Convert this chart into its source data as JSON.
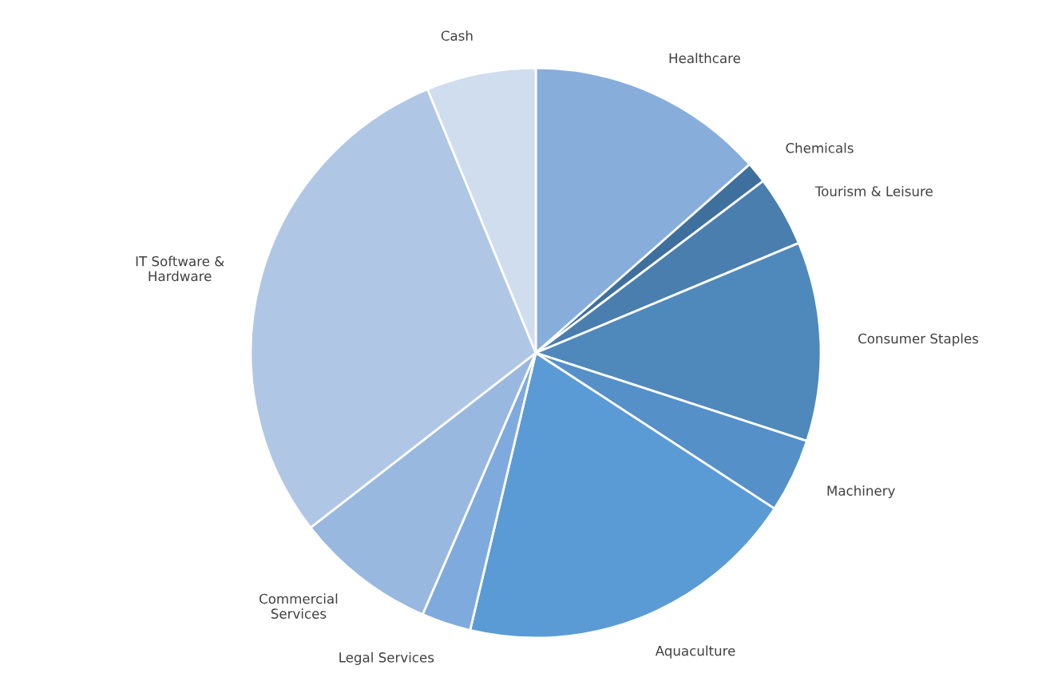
{
  "chart_data": {
    "type": "pie",
    "categories": [
      "Healthcare",
      "Chemicals",
      "Tourism & Leisure",
      "Consumer Staples",
      "Machinery",
      "Aquaculture",
      "Legal Services",
      "Commercial\nServices",
      "IT Software &\nHardware",
      "Cash"
    ],
    "values": [
      13.5,
      1.2,
      4,
      11.3,
      4.2,
      19.5,
      2.8,
      8,
      29.3,
      6.2
    ],
    "colors": [
      "#87aedb",
      "#3f6f9c",
      "#4a7eae",
      "#4f89bc",
      "#5590c9",
      "#5b9bd5",
      "#7faadd",
      "#98b8e0",
      "#b0c6e5",
      "#d0ddef"
    ],
    "legend": false
  }
}
